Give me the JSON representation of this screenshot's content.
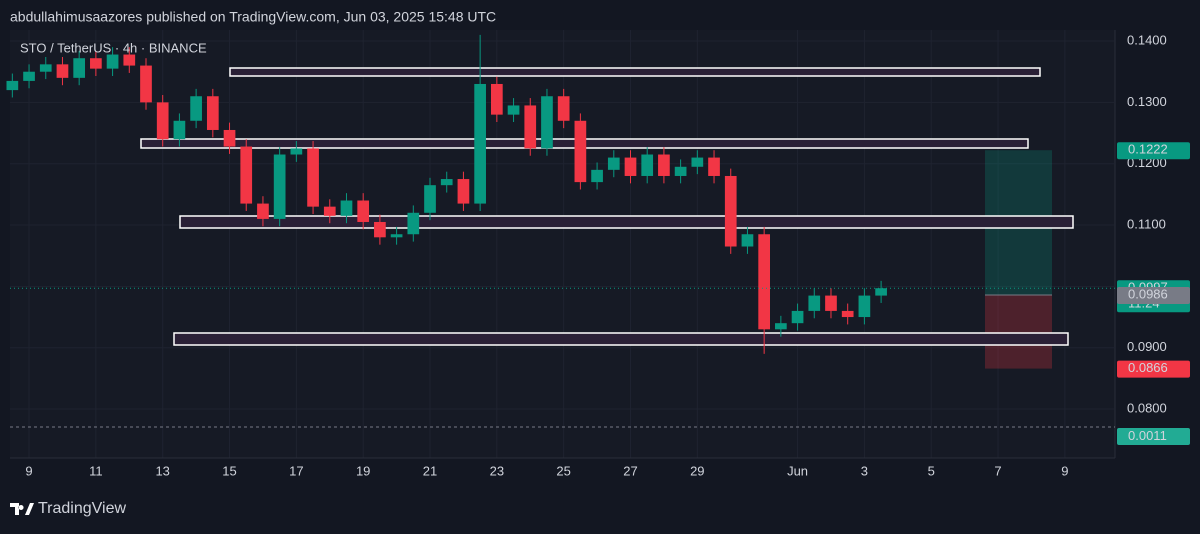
{
  "header": "abdullahimusaazores published on TradingView.com, Jun 03, 2025 15:48 UTC",
  "footer": "TradingView",
  "chart_data": {
    "type": "candlestick",
    "legend": "STO / TetherUS · 4h · BINANCE",
    "x": [
      8.5,
      9,
      9.5,
      10,
      10.5,
      11,
      11.5,
      12,
      12.5,
      13,
      13.5,
      14,
      14.5,
      15,
      15.5,
      16,
      16.5,
      17,
      17.5,
      18,
      18.5,
      19,
      19.5,
      20,
      20.5,
      21,
      21.5,
      22,
      22.5,
      23,
      23.5,
      24,
      24.5,
      25,
      25.5,
      26,
      26.5,
      27,
      27.5,
      28,
      28.5,
      29,
      29.5,
      30,
      30.5,
      31,
      31.5,
      32,
      32.5,
      33,
      33.5,
      34,
      34.5
    ],
    "open": [
      0.132,
      0.1335,
      0.135,
      0.1362,
      0.134,
      0.1372,
      0.1355,
      0.1378,
      0.136,
      0.13,
      0.124,
      0.127,
      0.131,
      0.1255,
      0.1228,
      0.1135,
      0.111,
      0.1215,
      0.1225,
      0.113,
      0.1115,
      0.114,
      0.1105,
      0.108,
      0.1085,
      0.112,
      0.1165,
      0.1175,
      0.1135,
      0.133,
      0.128,
      0.1295,
      0.1225,
      0.131,
      0.127,
      0.117,
      0.119,
      0.121,
      0.118,
      0.1215,
      0.118,
      0.1195,
      0.121,
      0.118,
      0.1065,
      0.1085,
      0.093,
      0.094,
      0.096,
      0.0985,
      0.096,
      0.095,
      0.0985
    ],
    "high": [
      0.1347,
      0.1362,
      0.1374,
      0.1374,
      0.1384,
      0.1384,
      0.139,
      0.139,
      0.1372,
      0.1312,
      0.1282,
      0.1322,
      0.1322,
      0.1267,
      0.124,
      0.1147,
      0.1227,
      0.1237,
      0.1237,
      0.1142,
      0.1152,
      0.1152,
      0.1117,
      0.1097,
      0.1132,
      0.1177,
      0.1187,
      0.1187,
      0.141,
      0.1342,
      0.1307,
      0.1307,
      0.1322,
      0.1322,
      0.1282,
      0.1202,
      0.1222,
      0.1222,
      0.1227,
      0.1227,
      0.1207,
      0.1222,
      0.1222,
      0.1192,
      0.1097,
      0.1097,
      0.0952,
      0.0972,
      0.0997,
      0.0997,
      0.0972,
      0.0997,
      0.1009
    ],
    "low": [
      0.1308,
      0.1323,
      0.1338,
      0.1328,
      0.1328,
      0.1343,
      0.1343,
      0.1348,
      0.1288,
      0.1228,
      0.1228,
      0.1258,
      0.1243,
      0.1216,
      0.1123,
      0.1098,
      0.1098,
      0.1203,
      0.1118,
      0.1103,
      0.1103,
      0.1093,
      0.1068,
      0.1068,
      0.1073,
      0.1108,
      0.1153,
      0.1123,
      0.1123,
      0.1268,
      0.1268,
      0.1213,
      0.1213,
      0.1258,
      0.1158,
      0.1158,
      0.1178,
      0.1168,
      0.1168,
      0.1168,
      0.1168,
      0.1183,
      0.1168,
      0.1053,
      0.1053,
      0.089,
      0.0918,
      0.0928,
      0.0948,
      0.0948,
      0.0938,
      0.0938,
      0.0973
    ],
    "close": [
      0.1335,
      0.135,
      0.1362,
      0.134,
      0.1372,
      0.1355,
      0.1378,
      0.136,
      0.13,
      0.124,
      0.127,
      0.131,
      0.1255,
      0.1228,
      0.1135,
      0.111,
      0.1215,
      0.1225,
      0.113,
      0.1115,
      0.114,
      0.1105,
      0.108,
      0.1085,
      0.112,
      0.1165,
      0.1175,
      0.1135,
      0.133,
      0.128,
      0.1295,
      0.1225,
      0.131,
      0.127,
      0.117,
      0.119,
      0.121,
      0.118,
      0.1215,
      0.118,
      0.1195,
      0.121,
      0.118,
      0.1065,
      0.1085,
      0.093,
      0.094,
      0.096,
      0.0985,
      0.096,
      0.095,
      0.0985,
      0.0997
    ],
    "up_color": "#089981",
    "down_color": "#f23645",
    "xlim": [
      8.43,
      41.5
    ],
    "xticks": [
      9,
      11,
      13,
      15,
      17,
      19,
      21,
      23,
      25,
      27,
      29,
      {
        "value": 32,
        "label": "Jun"
      },
      {
        "value": 34,
        "label": "3"
      },
      {
        "value": 36,
        "label": "5"
      },
      {
        "value": 38,
        "label": "7"
      },
      {
        "value": 40,
        "label": "9"
      }
    ],
    "ylim": [
      0.0774,
      0.1418
    ],
    "yticks": [
      {
        "value": 0.08,
        "label": "0.0800"
      },
      {
        "value": 0.09,
        "label": "0.0900"
      },
      {
        "value": 0.1,
        "label": "0.1000"
      },
      {
        "value": 0.11,
        "label": "0.1100"
      },
      {
        "value": 0.12,
        "label": "0.1200"
      },
      {
        "value": 0.13,
        "label": "0.1300"
      },
      {
        "value": 0.14,
        "label": "0.1400"
      }
    ],
    "grid": true,
    "last_price": 0.0997,
    "countdown": "11:24",
    "position": {
      "target": 0.1222,
      "entry": 0.0986,
      "stop": 0.0866
    },
    "indicator_value": 0.0011
  }
}
